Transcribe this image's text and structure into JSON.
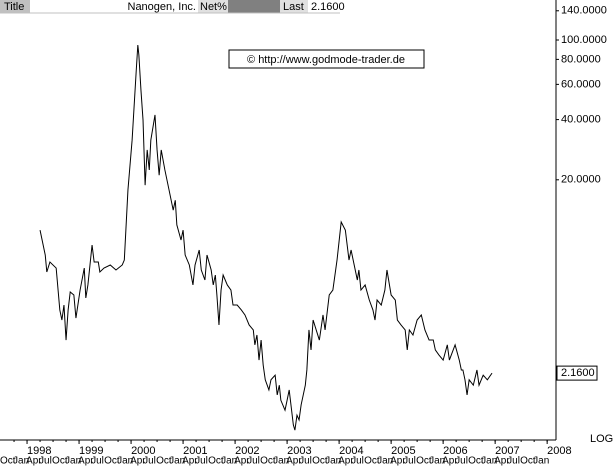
{
  "chart_data": {
    "type": "line",
    "title": "Nanogen, Inc.",
    "header": {
      "title_label": "Title",
      "net_label": "Net%",
      "last_label": "Last",
      "last_value": "2.1600"
    },
    "watermark": "© http://www.godmode-trader.de",
    "scale_label": "LOG",
    "log_scale": true,
    "color": "#000000",
    "xlim": [
      1997.48,
      2008.17
    ],
    "xticks": [
      1998,
      1999,
      2000,
      2001,
      2002,
      2003,
      2004,
      2005,
      2006,
      2007,
      2008
    ],
    "xminorticks": [
      {
        "value": 1997.75,
        "label": "Oct"
      },
      {
        "value": 1998.0,
        "label": "Jan"
      },
      {
        "value": 1998.25,
        "label": "Apr"
      },
      {
        "value": 1998.5,
        "label": "Jul"
      },
      {
        "value": 1998.75,
        "label": "Oct"
      },
      {
        "value": 1999.0,
        "label": "Jan"
      },
      {
        "value": 1999.25,
        "label": "Apr"
      },
      {
        "value": 1999.5,
        "label": "Jul"
      },
      {
        "value": 1999.75,
        "label": "Oct"
      },
      {
        "value": 2000.0,
        "label": "Jan"
      },
      {
        "value": 2000.25,
        "label": "Apr"
      },
      {
        "value": 2000.5,
        "label": "Jul"
      },
      {
        "value": 2000.75,
        "label": "Oct"
      },
      {
        "value": 2001.0,
        "label": "Jan"
      },
      {
        "value": 2001.25,
        "label": "Apr"
      },
      {
        "value": 2001.5,
        "label": "Jul"
      },
      {
        "value": 2001.75,
        "label": "Oct"
      },
      {
        "value": 2002.0,
        "label": "Jan"
      },
      {
        "value": 2002.25,
        "label": "Apr"
      },
      {
        "value": 2002.5,
        "label": "Jul"
      },
      {
        "value": 2002.75,
        "label": "Oct"
      },
      {
        "value": 2003.0,
        "label": "Jan"
      },
      {
        "value": 2003.25,
        "label": "Apr"
      },
      {
        "value": 2003.5,
        "label": "Jul"
      },
      {
        "value": 2003.75,
        "label": "Oct"
      },
      {
        "value": 2004.0,
        "label": "Jan"
      },
      {
        "value": 2004.25,
        "label": "Apr"
      },
      {
        "value": 2004.5,
        "label": "Jul"
      },
      {
        "value": 2004.75,
        "label": "Oct"
      },
      {
        "value": 2005.0,
        "label": "Jan"
      },
      {
        "value": 2005.25,
        "label": "Apr"
      },
      {
        "value": 2005.5,
        "label": "Jul"
      },
      {
        "value": 2005.75,
        "label": "Oct"
      },
      {
        "value": 2006.0,
        "label": "Jan"
      },
      {
        "value": 2006.25,
        "label": "Apr"
      },
      {
        "value": 2006.5,
        "label": "Jul"
      },
      {
        "value": 2006.75,
        "label": "Oct"
      },
      {
        "value": 2007.0,
        "label": "Jan"
      },
      {
        "value": 2007.25,
        "label": "Apr"
      },
      {
        "value": 2007.5,
        "label": "Jul"
      },
      {
        "value": 2007.75,
        "label": "Oct"
      },
      {
        "value": 2008.0,
        "label": "Jan"
      }
    ],
    "ylim": [
      1,
      158.5
    ],
    "yticks": [
      {
        "value": 140,
        "label": "140.0000"
      },
      {
        "value": 100,
        "label": "100.0000"
      },
      {
        "value": 80,
        "label": "80.0000"
      },
      {
        "value": 60,
        "label": "60.0000"
      },
      {
        "value": 40,
        "label": "40.0000"
      },
      {
        "value": 20,
        "label": "20.0000"
      }
    ],
    "x": [
      1998.25,
      1998.35,
      1998.38,
      1998.44,
      1998.56,
      1998.63,
      1998.67,
      1998.71,
      1998.75,
      1998.79,
      1998.83,
      1998.9,
      1998.94,
      1999.02,
      1999.1,
      1999.13,
      1999.17,
      1999.25,
      1999.29,
      1999.37,
      1999.4,
      1999.48,
      1999.6,
      1999.71,
      1999.83,
      1999.87,
      1999.9,
      1999.94,
      2000.02,
      2000.1,
      2000.13,
      2000.15,
      2000.19,
      2000.23,
      2000.27,
      2000.31,
      2000.35,
      2000.38,
      2000.46,
      2000.5,
      2000.54,
      2000.58,
      2000.65,
      2000.73,
      2000.81,
      2000.85,
      2000.88,
      2000.96,
      2001.0,
      2001.04,
      2001.12,
      2001.19,
      2001.23,
      2001.31,
      2001.35,
      2001.42,
      2001.46,
      2001.54,
      2001.58,
      2001.62,
      2001.65,
      2001.69,
      2001.73,
      2001.77,
      2001.85,
      2001.92,
      2001.96,
      2002.04,
      2002.12,
      2002.19,
      2002.27,
      2002.35,
      2002.38,
      2002.42,
      2002.46,
      2002.5,
      2002.54,
      2002.58,
      2002.65,
      2002.69,
      2002.77,
      2002.81,
      2002.85,
      2002.88,
      2002.96,
      2003.0,
      2003.04,
      2003.12,
      2003.15,
      2003.19,
      2003.23,
      2003.27,
      2003.35,
      2003.38,
      2003.42,
      2003.46,
      2003.5,
      2003.62,
      2003.69,
      2003.73,
      2003.81,
      2003.88,
      2003.96,
      2004.04,
      2004.12,
      2004.19,
      2004.23,
      2004.35,
      2004.38,
      2004.42,
      2004.5,
      2004.58,
      2004.65,
      2004.69,
      2004.73,
      2004.81,
      2004.88,
      2004.92,
      2005.0,
      2005.08,
      2005.12,
      2005.19,
      2005.27,
      2005.31,
      2005.35,
      2005.42,
      2005.5,
      2005.58,
      2005.65,
      2005.73,
      2005.81,
      2005.85,
      2005.92,
      2006.0,
      2006.08,
      2006.12,
      2006.23,
      2006.31,
      2006.35,
      2006.38,
      2006.42,
      2006.46,
      2006.5,
      2006.58,
      2006.65,
      2006.69,
      2006.77,
      2006.85,
      2006.94
    ],
    "values": [
      11.2,
      8.41,
      6.92,
      7.76,
      7.24,
      4.47,
      3.98,
      4.73,
      3.16,
      4.47,
      5.5,
      5.31,
      4.07,
      5.62,
      7.24,
      5.13,
      5.96,
      9.44,
      7.76,
      7.76,
      6.92,
      7.24,
      7.5,
      7.08,
      7.5,
      7.94,
      11.2,
      17.8,
      31.6,
      70.8,
      94.4,
      84.1,
      56.2,
      39.8,
      18.8,
      28.2,
      22.4,
      31.6,
      42.2,
      28.2,
      21.1,
      28.2,
      22.4,
      17.8,
      14.1,
      15.8,
      11.9,
      10.0,
      11.2,
      8.41,
      7.5,
      5.96,
      7.5,
      8.91,
      7.08,
      6.31,
      8.41,
      7.08,
      5.96,
      6.68,
      5.31,
      3.76,
      5.62,
      6.68,
      5.96,
      5.62,
      4.73,
      4.73,
      4.47,
      4.22,
      3.76,
      3.55,
      2.99,
      3.35,
      2.51,
      3.16,
      2.37,
      2.0,
      1.78,
      2.0,
      2.11,
      1.68,
      1.88,
      1.58,
      1.41,
      1.58,
      1.78,
      1.19,
      1.12,
      1.33,
      1.26,
      1.5,
      1.88,
      2.24,
      3.55,
      2.82,
      3.98,
      3.16,
      4.22,
      3.55,
      5.31,
      5.62,
      7.94,
      12.3,
      11.2,
      7.94,
      8.91,
      6.31,
      7.08,
      5.62,
      5.96,
      5.01,
      4.47,
      3.98,
      5.01,
      4.73,
      5.62,
      7.08,
      5.31,
      5.01,
      3.98,
      3.76,
      3.55,
      2.82,
      3.55,
      3.35,
      3.98,
      4.22,
      3.55,
      3.16,
      3.16,
      2.82,
      2.66,
      2.51,
      2.99,
      2.51,
      2.99,
      2.51,
      2.24,
      2.24,
      2.0,
      1.68,
      2.0,
      1.88,
      2.24,
      1.88,
      2.11,
      2.0,
      2.16
    ]
  }
}
